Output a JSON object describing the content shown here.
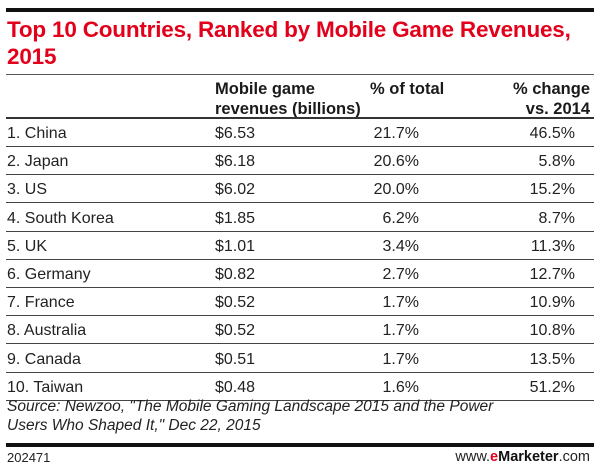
{
  "chart_data": {
    "type": "table",
    "title": "Top 10 Countries, Ranked by Mobile Game Revenues, 2015",
    "columns": [
      "",
      "Mobile game revenues (billions)",
      "% of total",
      "% change vs. 2014"
    ],
    "column_headers": {
      "revenue_line1": "Mobile game",
      "revenue_line2": "revenues (billions)",
      "pct_line1": "% of total",
      "chg_line1": "% change",
      "chg_line2": "vs. 2014"
    },
    "rows": [
      {
        "country": "1. China",
        "revenue": "$6.53",
        "pct_total": "21.7%",
        "pct_change": "46.5%"
      },
      {
        "country": "2. Japan",
        "revenue": "$6.18",
        "pct_total": "20.6%",
        "pct_change": "5.8%"
      },
      {
        "country": "3. US",
        "revenue": "$6.02",
        "pct_total": "20.0%",
        "pct_change": "15.2%"
      },
      {
        "country": "4. South Korea",
        "revenue": "$1.85",
        "pct_total": "6.2%",
        "pct_change": "8.7%"
      },
      {
        "country": "5. UK",
        "revenue": "$1.01",
        "pct_total": "3.4%",
        "pct_change": "11.3%"
      },
      {
        "country": "6. Germany",
        "revenue": "$0.82",
        "pct_total": "2.7%",
        "pct_change": "12.7%"
      },
      {
        "country": "7. France",
        "revenue": "$0.52",
        "pct_total": "1.7%",
        "pct_change": "10.9%"
      },
      {
        "country": "8. Australia",
        "revenue": "$0.52",
        "pct_total": "1.7%",
        "pct_change": "10.8%"
      },
      {
        "country": "9. Canada",
        "revenue": "$0.51",
        "pct_total": "1.7%",
        "pct_change": "13.5%"
      },
      {
        "country": "10. Taiwan",
        "revenue": "$0.48",
        "pct_total": "1.6%",
        "pct_change": "51.2%"
      }
    ],
    "source_line1": "Source: Newzoo, \"The Mobile Gaming Landscape 2015 and the Power",
    "source_line2": "Users Who Shaped It,\" Dec 22, 2015"
  },
  "footer": {
    "chart_id": "202471",
    "brand_prefix": "www.",
    "brand_e": "e",
    "brand_name": "Marketer",
    "brand_suffix": ".com"
  },
  "colors": {
    "title": "#e2001a",
    "brand_accent": "#e2001a",
    "rules": "#111111"
  }
}
